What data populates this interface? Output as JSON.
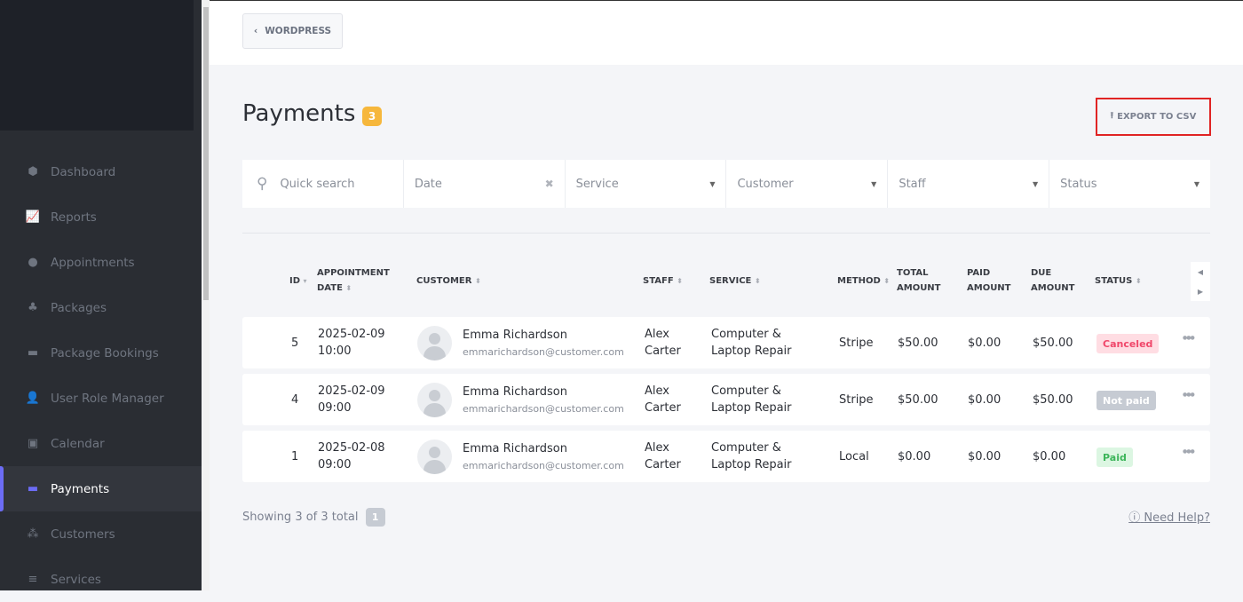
{
  "sidebar": {
    "items": [
      {
        "label": "Dashboard",
        "icon": "cube-icon"
      },
      {
        "label": "Reports",
        "icon": "chart-line-icon"
      },
      {
        "label": "Appointments",
        "icon": "clock-icon"
      },
      {
        "label": "Packages",
        "icon": "cubes-icon"
      },
      {
        "label": "Package Bookings",
        "icon": "box-open-icon"
      },
      {
        "label": "User Role Manager",
        "icon": "user-plus-icon"
      },
      {
        "label": "Calendar",
        "icon": "calendar-check-icon"
      },
      {
        "label": "Payments",
        "icon": "wallet-icon",
        "active": true
      },
      {
        "label": "Customers",
        "icon": "users-icon"
      },
      {
        "label": "Services",
        "icon": "list-icon"
      }
    ]
  },
  "topbar": {
    "back_label": "WORDPRESS"
  },
  "page": {
    "title": "Payments",
    "count": "3",
    "export_label": "EXPORT TO CSV",
    "accent": "#6c6cf5"
  },
  "filters": {
    "search_placeholder": "Quick search",
    "date": "Date",
    "service": "Service",
    "customer": "Customer",
    "staff": "Staff",
    "status": "Status"
  },
  "table": {
    "headers": {
      "id": "ID",
      "date1": "APPOINTMENT",
      "date2": "DATE",
      "customer": "CUSTOMER",
      "staff": "STAFF",
      "service": "SERVICE",
      "method": "METHOD",
      "total1": "TOTAL",
      "total2": "AMOUNT",
      "paid1": "PAID",
      "paid2": "AMOUNT",
      "due1": "DUE",
      "due2": "AMOUNT",
      "status": "STATUS"
    },
    "rows": [
      {
        "id": "5",
        "date": "2025-02-09",
        "time": "10:00",
        "name": "Emma Richardson",
        "email": "emmarichardson@customer.com",
        "staff1": "Alex",
        "staff2": "Carter",
        "service1": "Computer &",
        "service2": "Laptop Repair",
        "method": "Stripe",
        "total": "$50.00",
        "paid": "$0.00",
        "due": "$50.00",
        "status": "Canceled",
        "status_bg": "#ffdde3",
        "status_fg": "#f0476a"
      },
      {
        "id": "4",
        "date": "2025-02-09",
        "time": "09:00",
        "name": "Emma Richardson",
        "email": "emmarichardson@customer.com",
        "staff1": "Alex",
        "staff2": "Carter",
        "service1": "Computer &",
        "service2": "Laptop Repair",
        "method": "Stripe",
        "total": "$50.00",
        "paid": "$0.00",
        "due": "$50.00",
        "status": "Not paid",
        "status_bg": "#c6cbd3",
        "status_fg": "#ffffff"
      },
      {
        "id": "1",
        "date": "2025-02-08",
        "time": "09:00",
        "name": "Emma Richardson",
        "email": "emmarichardson@customer.com",
        "staff1": "Alex",
        "staff2": "Carter",
        "service1": "Computer &",
        "service2": "Laptop Repair",
        "method": "Local",
        "total": "$0.00",
        "paid": "$0.00",
        "due": "$0.00",
        "status": "Paid",
        "status_bg": "#dcf6e2",
        "status_fg": "#3cb55a"
      }
    ]
  },
  "footer": {
    "showing": "Showing 3 of 3 total",
    "page": "1",
    "help": "Need Help?"
  }
}
